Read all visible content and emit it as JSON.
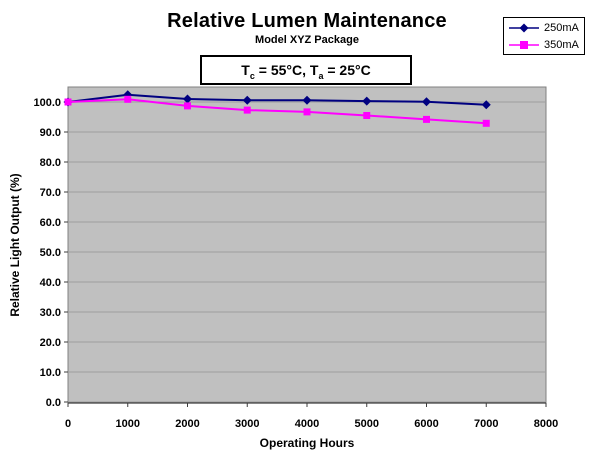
{
  "chart": {
    "annotation": {
      "prefix": "T",
      "sub1": "c",
      "mid": " = 55°C, T",
      "sub2": "a",
      "suffix": " = 25°C",
      "full_text": "Tc = 55°C, Ta = 25°C"
    },
    "colors": {
      "plot_bg": "#c0c0c0",
      "gridline": "#9e9e9e",
      "plot_border": "#808080",
      "axis": "#3c3c3c",
      "text": "#000000"
    }
  },
  "chart_data": {
    "type": "line",
    "title": "Relative Lumen Maintenance",
    "subtitle": "Model XYZ Package",
    "annotation": "Tc = 55°C, Ta = 25°C",
    "xlabel": "Operating Hours",
    "ylabel": "Relative Light Output (%)",
    "x": [
      0,
      1000,
      2000,
      3000,
      4000,
      5000,
      6000,
      7000
    ],
    "x_ticks": [
      0,
      1000,
      2000,
      3000,
      4000,
      5000,
      6000,
      7000,
      8000
    ],
    "xlim": [
      0,
      8000
    ],
    "y_ticks": [
      0,
      10,
      20,
      30,
      40,
      50,
      60,
      70,
      80,
      90,
      100
    ],
    "y_tick_labels": [
      "0.0",
      "10.0",
      "20.0",
      "30.0",
      "40.0",
      "50.0",
      "60.0",
      "70.0",
      "80.0",
      "90.0",
      "100.0"
    ],
    "ylim": [
      0,
      105
    ],
    "grid": "horizontal",
    "legend_position": "top-right",
    "series": [
      {
        "name": "250mA",
        "marker": "diamond",
        "color": "#000080",
        "values": [
          100.0,
          102.4,
          101.0,
          100.6,
          100.6,
          100.3,
          100.1,
          99.1
        ]
      },
      {
        "name": "350mA",
        "marker": "square",
        "color": "#ff00ff",
        "values": [
          100.0,
          100.9,
          98.7,
          97.3,
          96.7,
          95.5,
          94.2,
          92.9
        ]
      }
    ]
  }
}
